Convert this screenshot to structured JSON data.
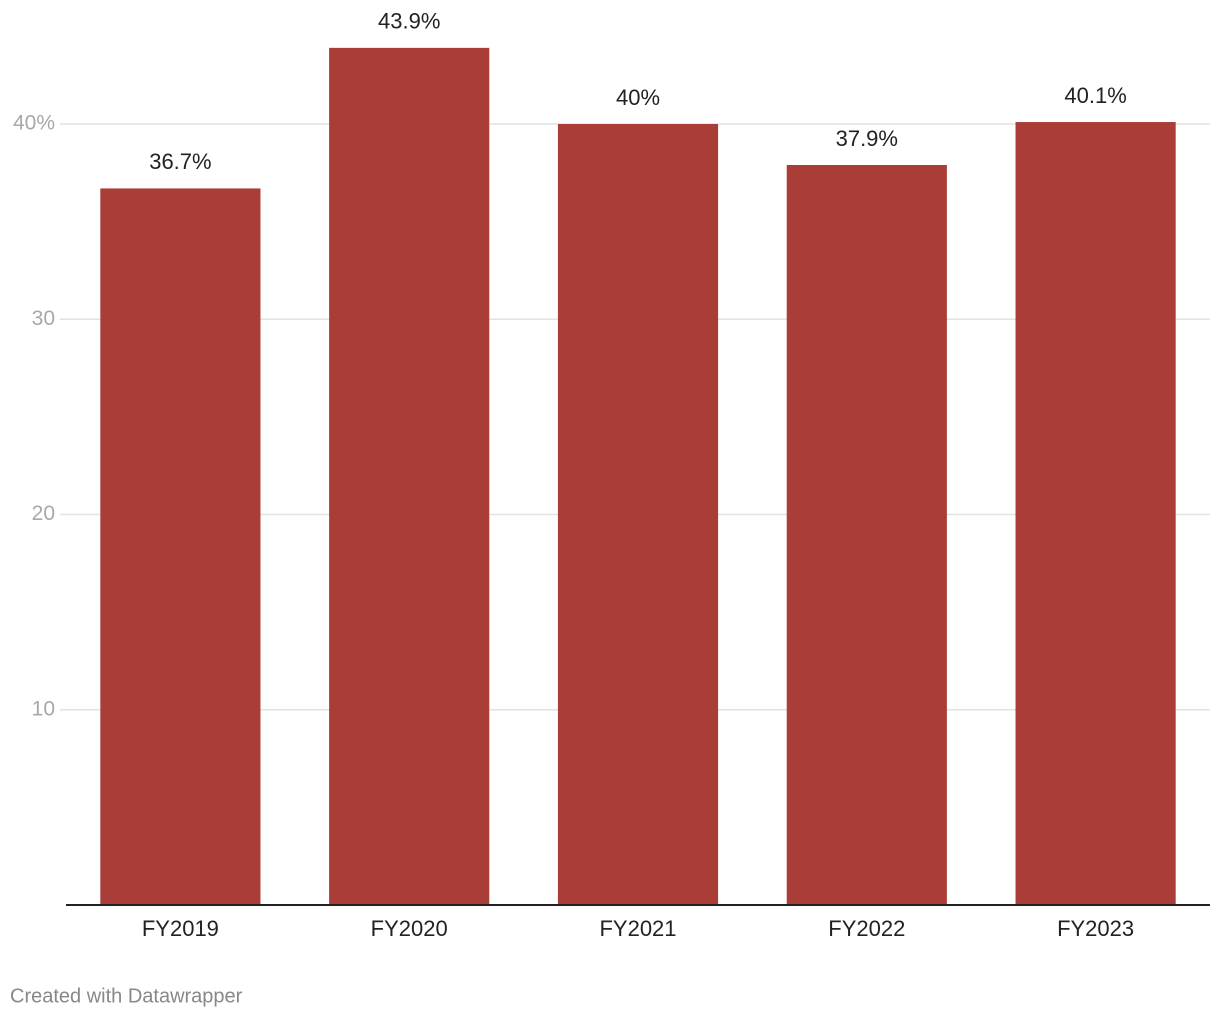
{
  "chart_data": {
    "type": "bar",
    "categories": [
      "FY2019",
      "FY2020",
      "FY2021",
      "FY2022",
      "FY2023"
    ],
    "values": [
      36.7,
      43.9,
      40,
      37.9,
      40.1
    ],
    "value_labels": [
      "36.7%",
      "43.9%",
      "40%",
      "37.9%",
      "40.1%"
    ],
    "color": "#ab3d38",
    "ylim": [
      0,
      45
    ],
    "yticks": [
      10,
      20,
      30,
      {
        "value": 40,
        "label": "40%"
      }
    ],
    "grid": true,
    "credit": "Created with Datawrapper"
  }
}
